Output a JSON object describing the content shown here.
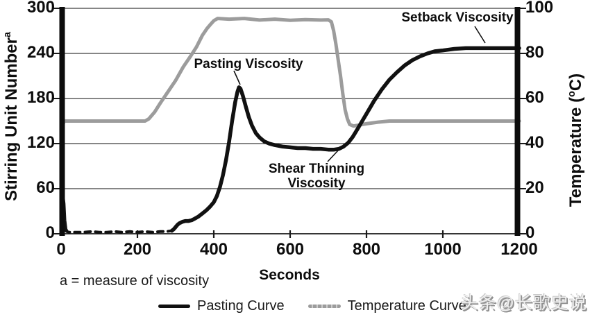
{
  "chart_data": {
    "type": "line",
    "xlabel": "Seconds",
    "ylabel_left": "Stirring Unit Number",
    "ylabel_left_sup": "a",
    "ylabel_right_pre": "Temperature (",
    "ylabel_right_sup": "o",
    "ylabel_right_post": "C)",
    "xlim": [
      0,
      1200
    ],
    "ylim_left": [
      0,
      300
    ],
    "ylim_right": [
      0,
      100
    ],
    "x_ticks": [
      0,
      200,
      400,
      600,
      800,
      1000,
      1200
    ],
    "y_left_ticks": [
      0,
      60,
      120,
      180,
      240,
      300
    ],
    "y_right_ticks": [
      0,
      20,
      40,
      60,
      80,
      100
    ],
    "grid": "horizontal-only",
    "legend_position": "bottom-center",
    "footnote": "a = measure of viscosity",
    "annotations": [
      {
        "text": "Pasting Viscosity"
      },
      {
        "text": "Shear Thinning\nViscosity"
      },
      {
        "text": "Setback Viscosity"
      }
    ],
    "series": [
      {
        "name": "Pasting Curve",
        "axis": "left",
        "color": "#111111",
        "x": [
          0,
          3,
          5,
          7,
          9,
          12,
          15,
          20,
          40,
          60,
          80,
          100,
          120,
          140,
          160,
          180,
          200,
          220,
          240,
          260,
          275,
          290,
          295,
          300,
          305,
          310,
          318,
          326,
          334,
          342,
          350,
          360,
          370,
          380,
          390,
          400,
          408,
          416,
          424,
          432,
          440,
          448,
          456,
          462,
          466,
          470,
          476,
          484,
          492,
          500,
          510,
          520,
          532,
          545,
          560,
          580,
          600,
          620,
          640,
          660,
          680,
          700,
          715,
          728,
          740,
          752,
          764,
          776,
          790,
          805,
          820,
          840,
          860,
          880,
          900,
          920,
          940,
          960,
          980,
          1000,
          1030,
          1060,
          1090,
          1120,
          1150,
          1180,
          1200
        ],
        "y": [
          1,
          20,
          48,
          40,
          18,
          6,
          3,
          2,
          2,
          2,
          3,
          2,
          2,
          3,
          2,
          3,
          2,
          3,
          2,
          3,
          3,
          4,
          6,
          9,
          12,
          14,
          16,
          17,
          17,
          18,
          20,
          23,
          27,
          31,
          36,
          42,
          50,
          62,
          78,
          98,
          122,
          150,
          175,
          189,
          195,
          193,
          184,
          169,
          155,
          144,
          134,
          128,
          123,
          120,
          118,
          116,
          115,
          114,
          114,
          113,
          113,
          112,
          112,
          113,
          116,
          121,
          129,
          139,
          151,
          164,
          177,
          192,
          205,
          215,
          224,
          231,
          236,
          240,
          243,
          244,
          246,
          247,
          247,
          247,
          247,
          247,
          247
        ]
      },
      {
        "name": "Temperature Curve",
        "axis": "right",
        "color": "#9c9c9c",
        "x": [
          0,
          4,
          8,
          20,
          50,
          80,
          110,
          140,
          170,
          200,
          220,
          230,
          245,
          260,
          280,
          300,
          320,
          340,
          355,
          370,
          382,
          392,
          400,
          410,
          440,
          480,
          520,
          560,
          600,
          640,
          680,
          700,
          708,
          714,
          720,
          726,
          732,
          738,
          744,
          750,
          756,
          766,
          780,
          800,
          830,
          860,
          900,
          950,
          1000,
          1050,
          1100,
          1150,
          1200
        ],
        "y": [
          45,
          48,
          50,
          50,
          50,
          50,
          50,
          50,
          50,
          50,
          50,
          51,
          54,
          58,
          63,
          68,
          74,
          79,
          83,
          88,
          91,
          93,
          94.5,
          95.5,
          95.2,
          95.5,
          94.8,
          95.2,
          94.7,
          95.0,
          94.8,
          94.9,
          94,
          90,
          84,
          77,
          70,
          62,
          55,
          51,
          48.5,
          47.8,
          48.2,
          48.8,
          49.5,
          50,
          50,
          50,
          50,
          50,
          50,
          50,
          50
        ]
      }
    ],
    "key_values": {
      "pasting_peak_su": 195,
      "shear_thinning_trough_su": 112,
      "setback_plateau_su": 247,
      "temp_hold_low_c": 50,
      "temp_hold_high_c": 95
    }
  },
  "legend": {
    "items": [
      {
        "label": "Pasting Curve",
        "color": "#111111"
      },
      {
        "label": "Temperature Curve",
        "color": "#9c9c9c"
      }
    ]
  },
  "watermark": {
    "text": "头条@长歌史说"
  }
}
